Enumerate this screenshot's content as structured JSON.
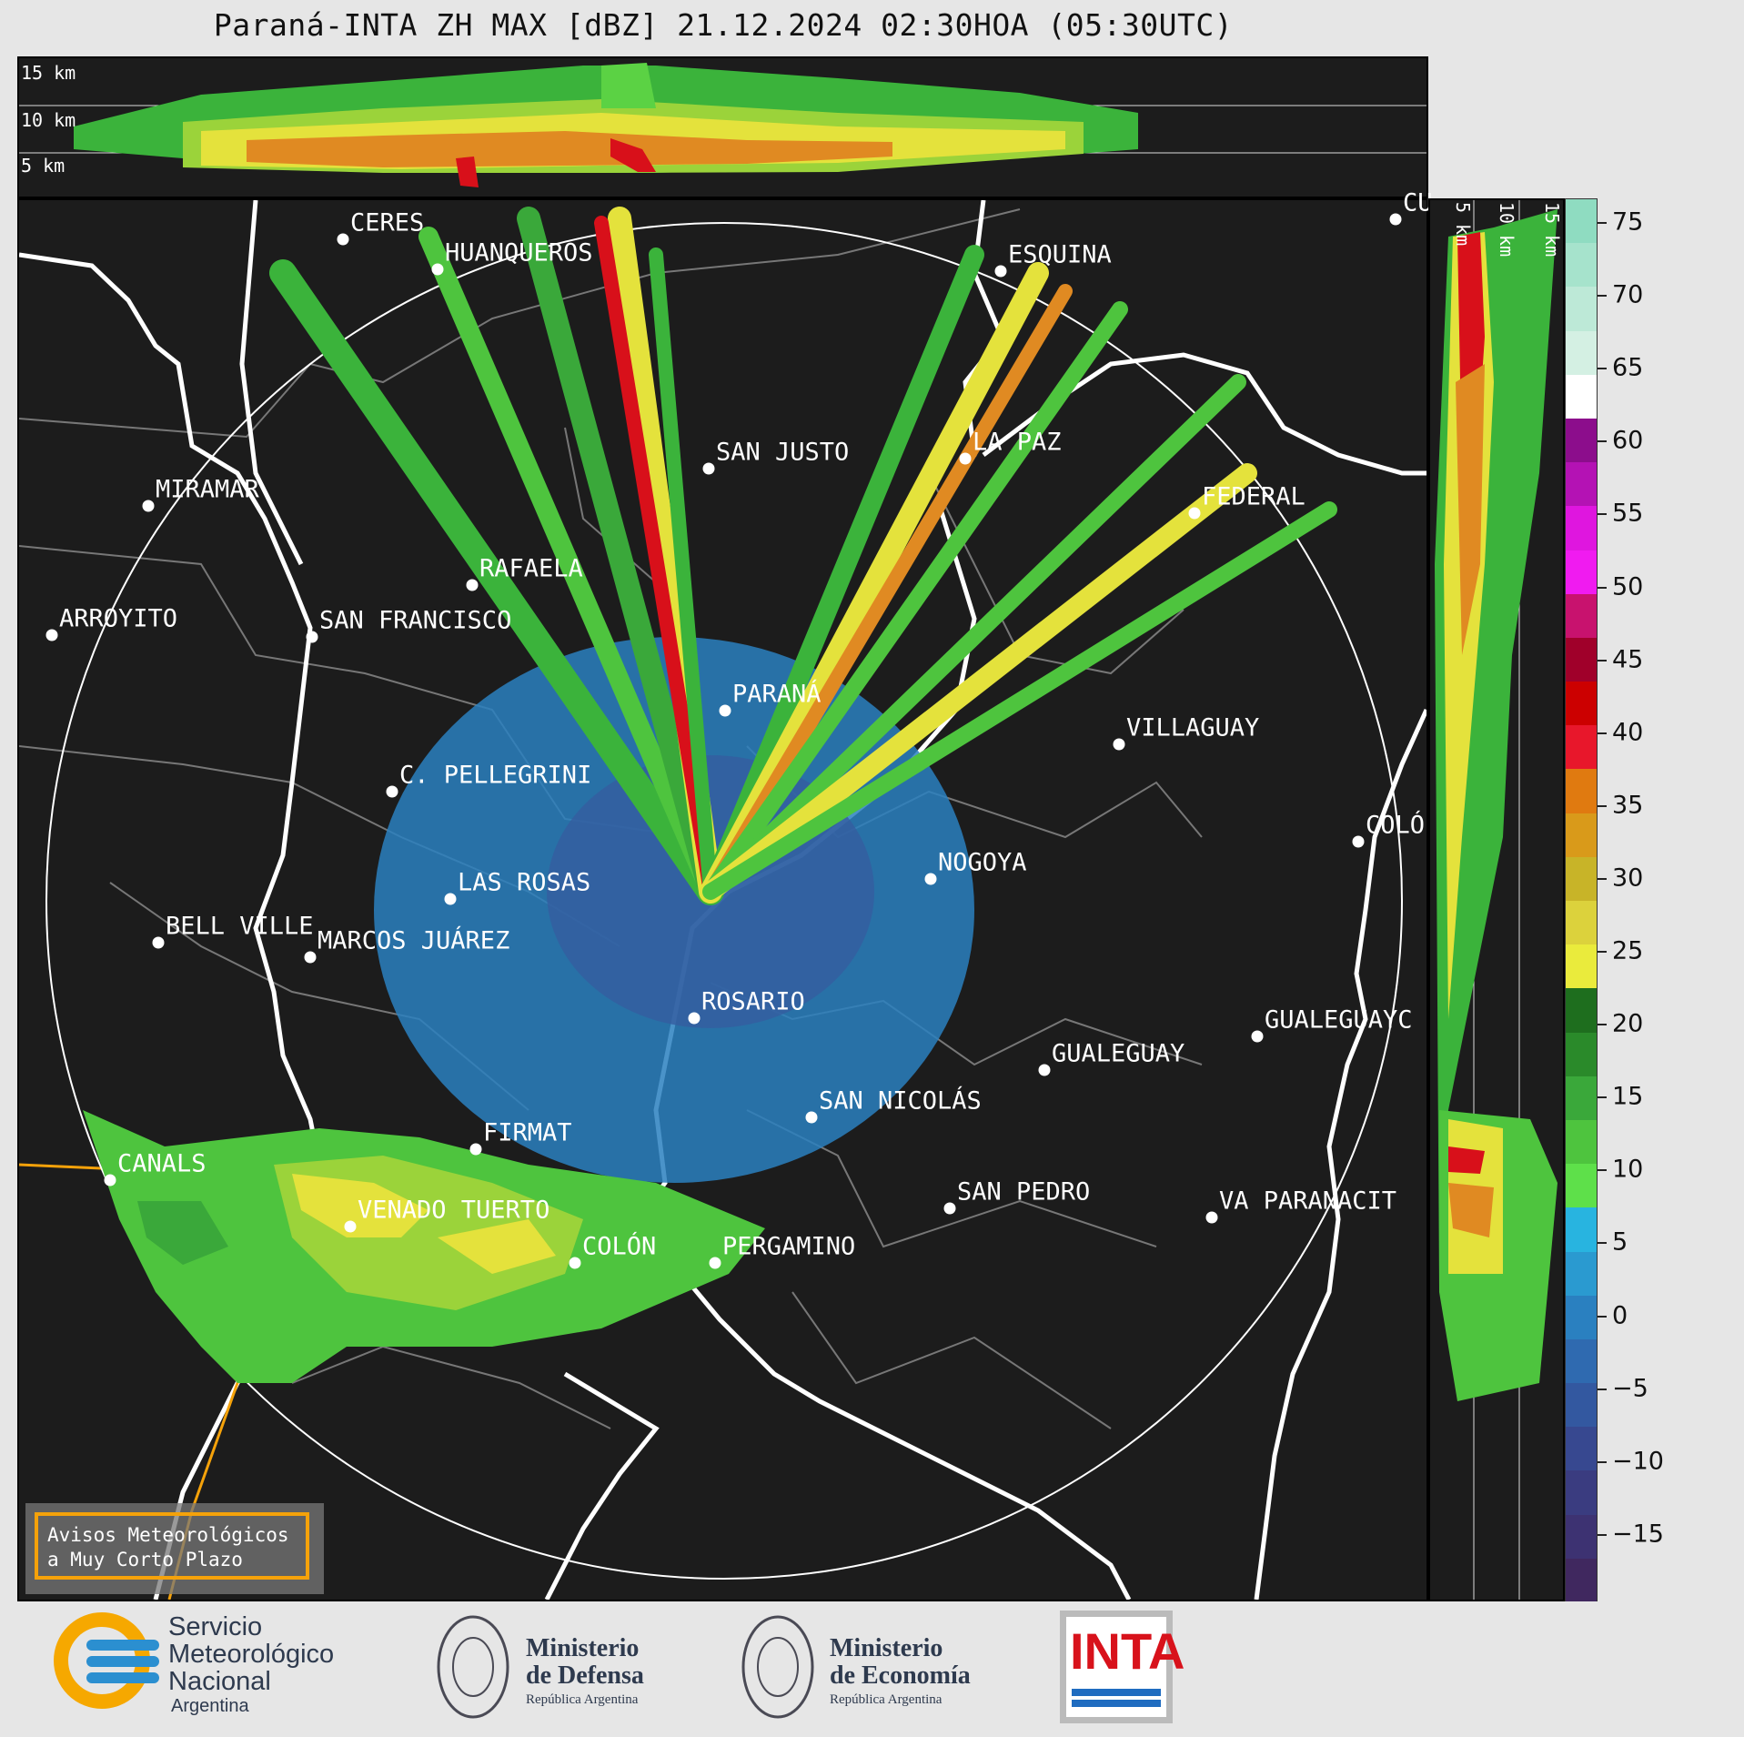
{
  "title": "Paraná-INTA ZH MAX [dBZ] 21.12.2024 02:30HOA (05:30UTC)",
  "top_panel": {
    "altitudes": [
      "15 km",
      "10 km",
      "5 km"
    ]
  },
  "side_panel": {
    "altitudes": [
      "5 km",
      "10 km",
      "15 km"
    ]
  },
  "colorbar": {
    "ticks": [
      "75",
      "70",
      "65",
      "60",
      "55",
      "50",
      "45",
      "40",
      "35",
      "30",
      "25",
      "20",
      "15",
      "10",
      "5",
      "0",
      "−5",
      "−10",
      "−15"
    ],
    "colors": [
      "#8fdcc1",
      "#a6e3cc",
      "#bde9d7",
      "#d4f0e3",
      "#ffffff",
      "#8c0d8c",
      "#b412b4",
      "#df16df",
      "#f01bf0",
      "#c8126e",
      "#a0002a",
      "#cc0000",
      "#e8172b",
      "#e07a10",
      "#d99a1a",
      "#c8b428",
      "#dcd23c",
      "#eaeb3c",
      "#1e6e1e",
      "#2a8a2a",
      "#3aa83a",
      "#4ec43e",
      "#5ee04a",
      "#28b4e0",
      "#2a9ad0",
      "#2a80c0",
      "#2f6ab0",
      "#3358a0",
      "#374890",
      "#3a3c80",
      "#3d3272",
      "#40285f"
    ]
  },
  "cities": [
    {
      "name": "CERES"
    },
    {
      "name": "HUANQUEROS"
    },
    {
      "name": "ESQUINA"
    },
    {
      "name": "CU"
    },
    {
      "name": "LA PAZ"
    },
    {
      "name": "SAN JUSTO"
    },
    {
      "name": "MIRAMAR"
    },
    {
      "name": "FEDERAL"
    },
    {
      "name": "RAFAELA"
    },
    {
      "name": "ARROYITO"
    },
    {
      "name": "SAN FRANCISCO"
    },
    {
      "name": "PARANÁ"
    },
    {
      "name": "VILLAGUAY"
    },
    {
      "name": "C. PELLEGRINI"
    },
    {
      "name": "COLÓ"
    },
    {
      "name": "NOGOYA"
    },
    {
      "name": "LAS ROSAS"
    },
    {
      "name": "BELL VILLE"
    },
    {
      "name": "MARCOS JUÁREZ"
    },
    {
      "name": "ROSARIO"
    },
    {
      "name": "GUALEGUAYC"
    },
    {
      "name": "GUALEGUAY"
    },
    {
      "name": "SAN NICOLÁS"
    },
    {
      "name": "FIRMAT"
    },
    {
      "name": "CANALS"
    },
    {
      "name": "SAN PEDRO"
    },
    {
      "name": "VENADO TUERTO"
    },
    {
      "name": "VA PARANACIT"
    },
    {
      "name": "COLÓN"
    },
    {
      "name": "PERGAMINO"
    }
  ],
  "alert_box": {
    "line1": "Avisos Meteorológicos",
    "line2": "a Muy Corto Plazo"
  },
  "footer": {
    "smn": {
      "line1": "Servicio",
      "line2": "Meteorológico",
      "line3": "Nacional",
      "line4": "Argentina"
    },
    "defensa": {
      "line1": "Ministerio",
      "line2": "de Defensa",
      "line3": "República Argentina"
    },
    "economia": {
      "line1": "Ministerio",
      "line2": "de Economía",
      "line3": "República Argentina"
    },
    "inta": "INTA"
  }
}
